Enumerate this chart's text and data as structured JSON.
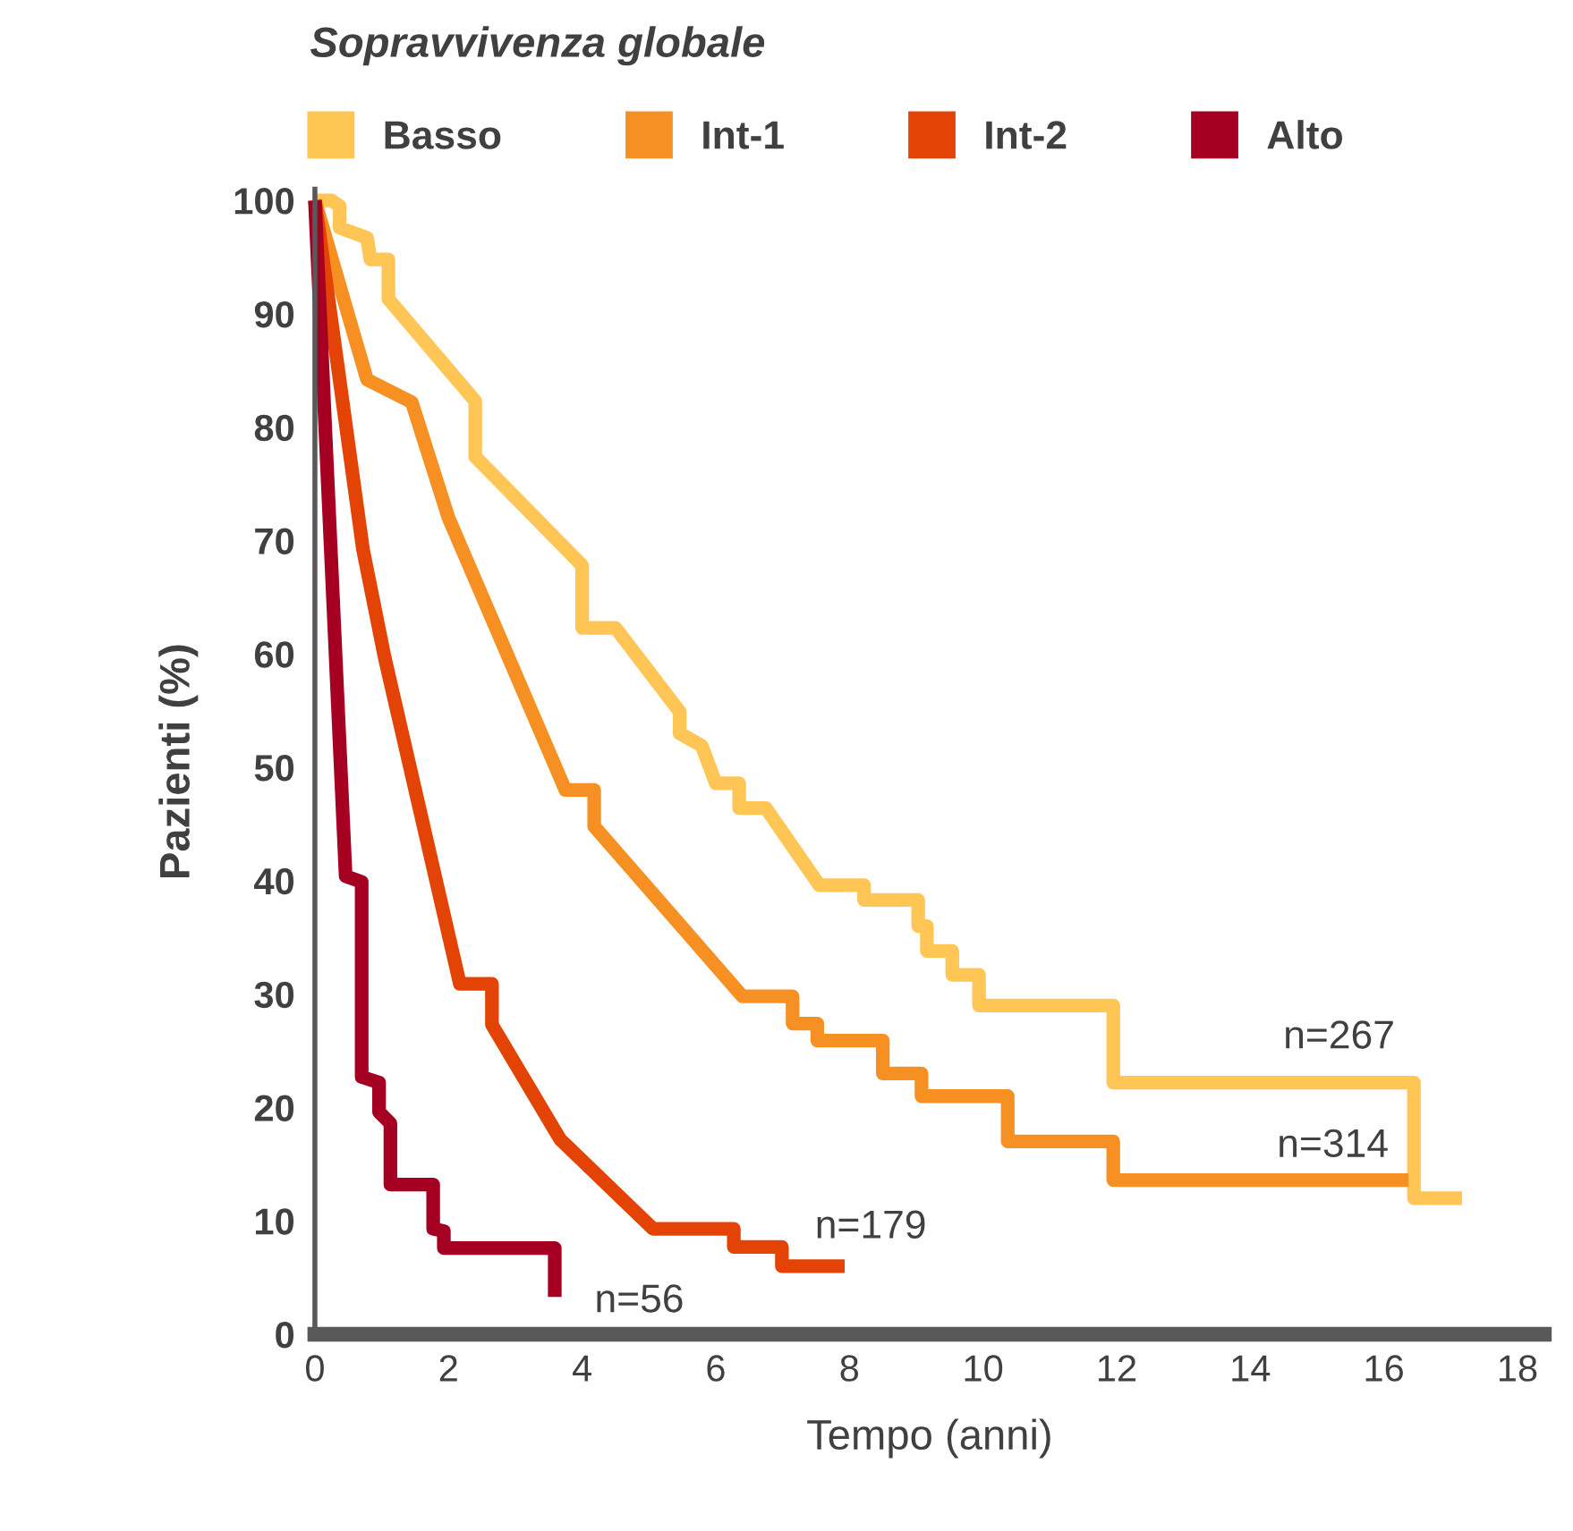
{
  "chart_data": {
    "type": "line",
    "title": "Sopravvivenza globale",
    "xlabel": "Tempo (anni)",
    "ylabel": "Pazienti (%)",
    "xlim": [
      0,
      18.4
    ],
    "ylim": [
      0,
      101
    ],
    "xticks": [
      0,
      2,
      4,
      6,
      8,
      10,
      12,
      14,
      16,
      18
    ],
    "yticks": [
      0,
      10,
      20,
      30,
      40,
      50,
      60,
      70,
      80,
      90,
      100
    ],
    "grid": false,
    "legend": "top",
    "marker": "none",
    "line_style": "solid",
    "series": [
      {
        "name": "Basso",
        "color": "#ffc555",
        "x": [
          0,
          0.25,
          0.37,
          0.37,
          0.78,
          0.83,
          1.1,
          1.1,
          2.4,
          2.4,
          4.0,
          4.0,
          4.5,
          5.46,
          5.46,
          5.79,
          6.0,
          6.35,
          6.35,
          6.75,
          7.55,
          8.22,
          8.22,
          9.03,
          9.03,
          9.16,
          9.16,
          9.54,
          9.54,
          9.94,
          9.94,
          11.95,
          11.95,
          16.45,
          16.45,
          17.17
        ],
        "values": [
          100,
          100,
          99.5,
          97.6,
          96.7,
          94.8,
          94.8,
          91.3,
          82.3,
          77.4,
          67.8,
          62.3,
          62.3,
          54.9,
          53,
          51.9,
          48.6,
          48.6,
          46.4,
          46.4,
          39.6,
          39.6,
          38.3,
          38.3,
          36,
          36,
          33.8,
          33.8,
          31.7,
          31.7,
          29,
          29,
          22.2,
          22.2,
          12,
          12
        ]
      },
      {
        "name": "Int-1",
        "color": "#f79022",
        "x": [
          0,
          0.78,
          1.45,
          2.0,
          3.75,
          4.18,
          4.18,
          6.4,
          7.15,
          7.15,
          7.52,
          7.52,
          8.5,
          8.5,
          9.08,
          9.08,
          10.37,
          10.37,
          11.95,
          11.95,
          16.37
        ],
        "values": [
          100,
          84.2,
          82.2,
          72,
          48,
          48,
          44.8,
          29.8,
          29.8,
          27.4,
          27.4,
          25.9,
          25.9,
          23,
          23,
          21,
          21,
          17,
          17,
          13.6,
          13.6
        ]
      },
      {
        "name": "Int-2",
        "color": "#e34304",
        "x": [
          0,
          0.72,
          1.04,
          2.17,
          2.65,
          2.65,
          3.67,
          5.06,
          6.27,
          6.27,
          6.99,
          6.99,
          7.93
        ],
        "values": [
          100,
          69.2,
          59.8,
          30.9,
          30.9,
          27.3,
          17.2,
          9.3,
          9.3,
          7.7,
          7.7,
          6,
          6
        ]
      },
      {
        "name": "Alto",
        "color": "#a50021",
        "x": [
          0,
          0.46,
          0.7,
          0.7,
          0.96,
          0.96,
          1.13,
          1.13,
          1.77,
          1.77,
          1.93,
          1.93,
          3.59,
          3.59
        ],
        "values": [
          100,
          40.4,
          39.9,
          22.7,
          22.2,
          19.6,
          18.6,
          13.2,
          13.2,
          9.3,
          9.1,
          7.6,
          7.6,
          3.3
        ]
      }
    ],
    "annotations": [
      "n=267",
      "n=314",
      "n=179",
      "n=56"
    ]
  }
}
